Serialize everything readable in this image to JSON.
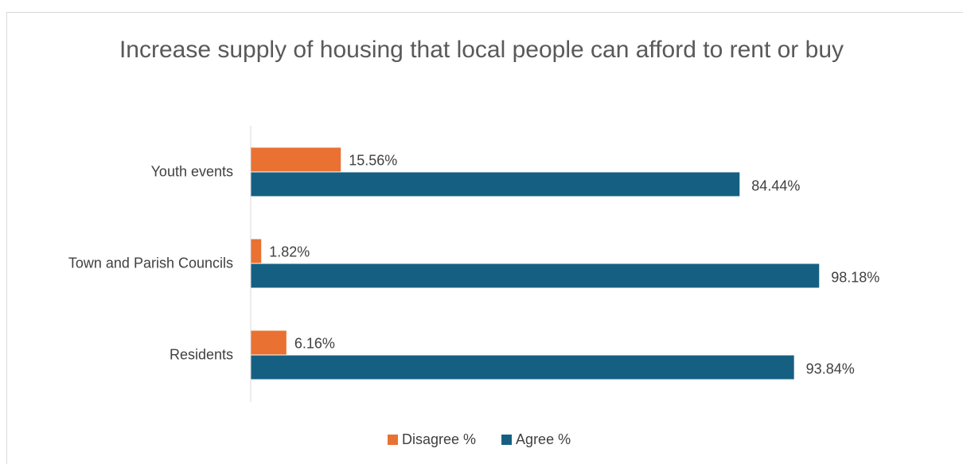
{
  "chart_data": {
    "type": "bar",
    "orientation": "horizontal",
    "title": "Increase supply of housing that local people can afford to rent or buy",
    "categories": [
      "Youth events",
      "Town and Parish Councils",
      "Residents"
    ],
    "series": [
      {
        "name": "Disagree %",
        "color": "#e97132",
        "values": [
          15.56,
          1.82,
          6.16
        ],
        "value_labels": [
          "15.56%",
          "1.82%",
          "6.16%"
        ]
      },
      {
        "name": "Agree %",
        "color": "#156082",
        "values": [
          84.44,
          98.18,
          93.84
        ],
        "value_labels": [
          "84.44%",
          "98.18%",
          "93.84%"
        ]
      }
    ],
    "xlim": [
      0,
      120
    ],
    "legend": "bottom"
  }
}
